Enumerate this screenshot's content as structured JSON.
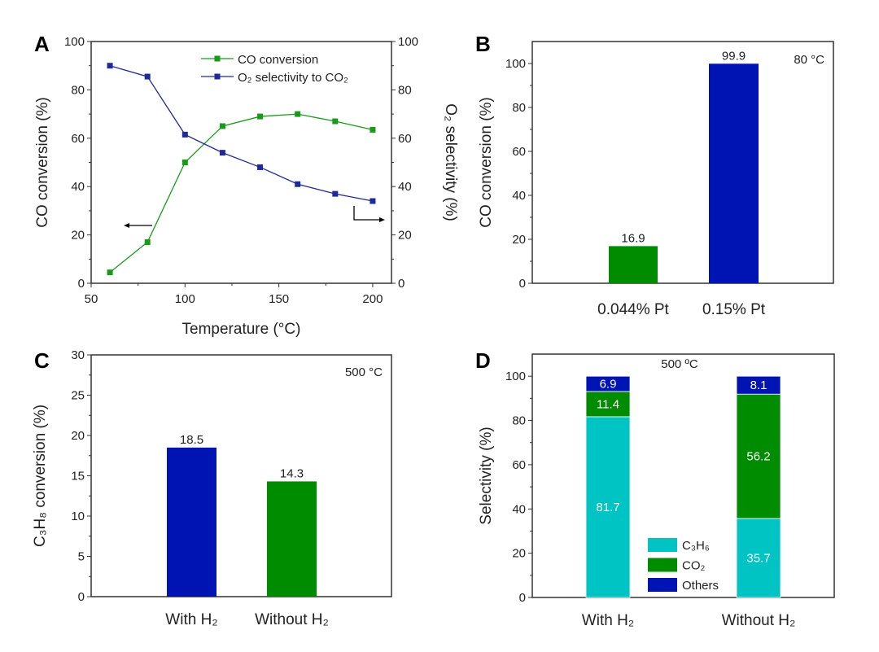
{
  "chart_data": [
    {
      "panel": "A",
      "type": "line",
      "xlabel": "Temperature (°C)",
      "ylabel": "CO conversion (%)",
      "y2label": "O₂ selectivity (%)",
      "xlim": [
        50,
        210
      ],
      "ylim": [
        0,
        100
      ],
      "y2lim": [
        0,
        100
      ],
      "xticks": [
        50,
        100,
        150,
        200
      ],
      "yticks": [
        0,
        20,
        40,
        60,
        80,
        100
      ],
      "y2ticks": [
        0,
        20,
        40,
        60,
        80,
        100
      ],
      "grid": false,
      "legend_position": "top-right",
      "x": [
        60,
        80,
        100,
        120,
        140,
        160,
        180,
        200
      ],
      "series": [
        {
          "name": "CO conversion",
          "axis": "left",
          "color": "#1a9a1a",
          "values": [
            4.5,
            17,
            50,
            65,
            69,
            70,
            67,
            63.5
          ]
        },
        {
          "name": "O₂ selectivity to CO₂",
          "axis": "right",
          "color": "#1f2a9a",
          "values": [
            90,
            85.5,
            61.5,
            54,
            48,
            41,
            37,
            34
          ]
        }
      ]
    },
    {
      "panel": "B",
      "type": "bar",
      "annotation": "80 °C",
      "ylabel": "CO conversion (%)",
      "ylim": [
        0,
        110
      ],
      "yticks": [
        0,
        20,
        40,
        60,
        80,
        100
      ],
      "grid": false,
      "categories": [
        "0.044% Pt",
        "0.15% Pt"
      ],
      "values": [
        16.9,
        99.9
      ],
      "value_labels": [
        "16.9",
        "99.9"
      ],
      "colors": [
        "#008c00",
        "#0014b4"
      ]
    },
    {
      "panel": "C",
      "type": "bar",
      "annotation": "500 °C",
      "ylabel": "C₃H₈ conversion (%)",
      "ylim": [
        0,
        30
      ],
      "yticks": [
        0,
        5,
        10,
        15,
        20,
        25,
        30
      ],
      "grid": false,
      "categories": [
        "With H₂",
        "Without H₂"
      ],
      "values": [
        18.5,
        14.3
      ],
      "value_labels": [
        "18.5",
        "14.3"
      ],
      "colors": [
        "#0014b4",
        "#008c00"
      ]
    },
    {
      "panel": "D",
      "type": "bar",
      "stacked": true,
      "annotation": "500 ºC",
      "ylabel": "Selectivity (%)",
      "ylim": [
        0,
        110
      ],
      "yticks": [
        0,
        20,
        40,
        60,
        80,
        100
      ],
      "grid": false,
      "legend_position": "bottom-center",
      "categories": [
        "With H₂",
        "Without H₂"
      ],
      "series": [
        {
          "name": "C₃H₆",
          "color": "#00c4c4",
          "values": [
            81.7,
            35.7
          ],
          "value_labels": [
            "81.7",
            "35.7"
          ]
        },
        {
          "name": "CO₂",
          "color": "#008c00",
          "values": [
            11.4,
            56.2
          ],
          "value_labels": [
            "11.4",
            "56.2"
          ]
        },
        {
          "name": "Others",
          "color": "#0014b4",
          "values": [
            6.9,
            8.1
          ],
          "value_labels": [
            "6.9",
            "8.1"
          ]
        }
      ]
    }
  ]
}
